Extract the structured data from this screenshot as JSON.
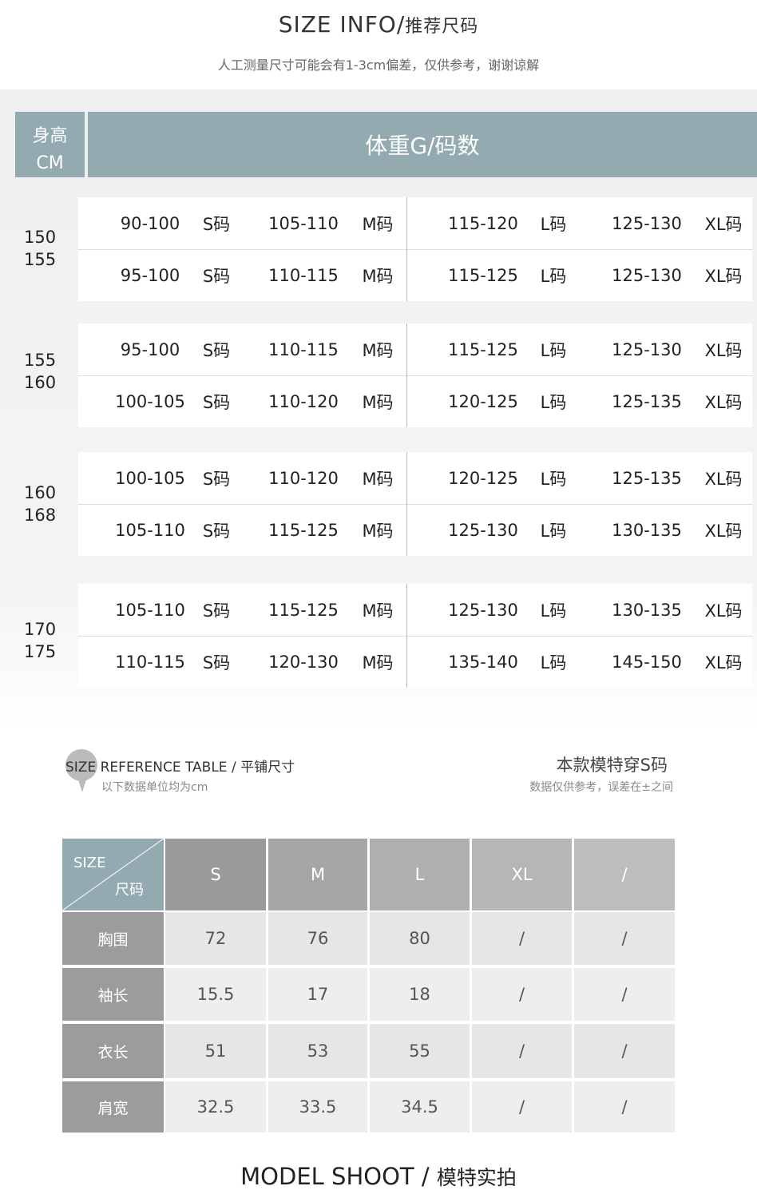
{
  "header": {
    "title_en": "SIZE INFO/",
    "title_cn": "推荐尺码",
    "subtitle": "人工测量尺寸可能会有1-3cm偏差，仅供参考，谢谢谅解"
  },
  "recommend": {
    "height_header": "身高",
    "height_unit": "CM",
    "weight_header": "体重G/码数",
    "groups": [
      {
        "heights": [
          "150",
          "155"
        ],
        "rows": [
          [
            "90-100",
            "S码",
            "105-110",
            "M码",
            "115-120",
            "L码",
            "125-130",
            "XL码"
          ],
          [
            "95-100",
            "S码",
            "110-115",
            "M码",
            "115-125",
            "L码",
            "125-130",
            "XL码"
          ]
        ]
      },
      {
        "heights": [
          "155",
          "160"
        ],
        "rows": [
          [
            "95-100",
            "S码",
            "110-115",
            "M码",
            "115-125",
            "L码",
            "125-130",
            "XL码"
          ],
          [
            "100-105",
            "S码",
            "110-120",
            "M码",
            "120-125",
            "L码",
            "125-135",
            "XL码"
          ]
        ]
      },
      {
        "heights": [
          "160",
          "168"
        ],
        "rows": [
          [
            "100-105",
            "S码",
            "110-120",
            "M码",
            "120-125",
            "L码",
            "125-135",
            "XL码"
          ],
          [
            "105-110",
            "S码",
            "115-125",
            "M码",
            "125-130",
            "L码",
            "130-135",
            "XL码"
          ]
        ]
      },
      {
        "heights": [
          "170",
          "175"
        ],
        "rows": [
          [
            "105-110",
            "S码",
            "115-125",
            "M码",
            "125-130",
            "L码",
            "130-135",
            "XL码"
          ],
          [
            "110-115",
            "S码",
            "120-130",
            "M码",
            "135-140",
            "L码",
            "145-150",
            "XL码"
          ]
        ]
      }
    ]
  },
  "reference": {
    "title_badge": "SIZE",
    "title": "REFERENCE TABLE / 平铺尺寸",
    "unit_note": "以下数据单位均为cm",
    "model_note": "本款模特穿S码",
    "model_sub": "数据仅供参考，误差在±之间",
    "corner_top": "SIZE",
    "corner_bottom": "尺码",
    "columns": [
      "S",
      "M",
      "L",
      "XL",
      "/"
    ],
    "rows": [
      {
        "label": "胸围",
        "values": [
          "72",
          "76",
          "80",
          "/",
          "/"
        ]
      },
      {
        "label": "袖长",
        "values": [
          "15.5",
          "17",
          "18",
          "/",
          "/"
        ]
      },
      {
        "label": "衣长",
        "values": [
          "51",
          "53",
          "55",
          "/",
          "/"
        ]
      },
      {
        "label": "肩宽",
        "values": [
          "32.5",
          "33.5",
          "34.5",
          "/",
          "/"
        ]
      }
    ]
  },
  "footer": {
    "title_en": "MODEL SHOOT / ",
    "title_cn": "模特实拍"
  },
  "colors": {
    "accent": "#93aab0",
    "label_gray": "#9c9c9c"
  }
}
